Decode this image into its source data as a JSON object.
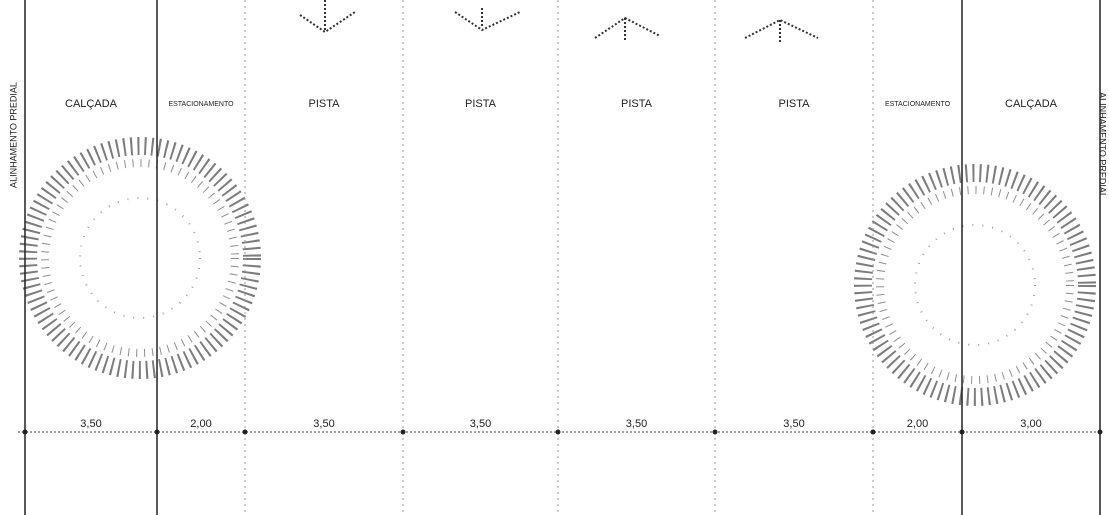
{
  "left_alignment": "ALINHAMENTO PREDIAL",
  "right_alignment": "ALINHAMENTO PREDIAL",
  "zones": [
    {
      "label": "CALÇADA",
      "width": "3,50"
    },
    {
      "label": "ESTACIONAMENTO",
      "width": "2,00"
    },
    {
      "label": "PISTA",
      "width": "3,50"
    },
    {
      "label": "PISTA",
      "width": "3,50"
    },
    {
      "label": "PISTA",
      "width": "3,50"
    },
    {
      "label": "PISTA",
      "width": "3,50"
    },
    {
      "label": "ESTACIONAMENTO",
      "width": "2,00"
    },
    {
      "label": "CALÇADA",
      "width": "3,00"
    }
  ]
}
